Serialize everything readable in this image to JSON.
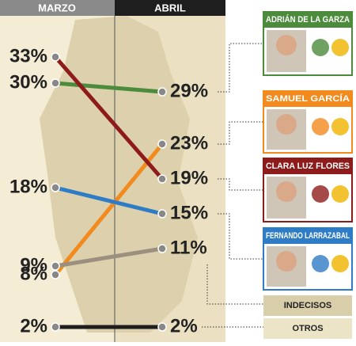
{
  "chart_data": {
    "type": "slope",
    "categories": [
      "MARZO",
      "ABRIL"
    ],
    "series": [
      {
        "name": "ADRIÁN DE LA GARZA",
        "color": "#4b8b3b",
        "values": [
          30,
          29
        ],
        "value_labels": [
          "30%",
          "29%"
        ]
      },
      {
        "name": "SAMUEL GARCÍA",
        "color": "#f28a1e",
        "values": [
          8,
          23
        ],
        "value_labels": [
          "8%",
          "23%"
        ]
      },
      {
        "name": "CLARA LUZ FLORES",
        "color": "#8e1b1b",
        "values": [
          33,
          19
        ],
        "value_labels": [
          "33%",
          "19%"
        ]
      },
      {
        "name": "FERNANDO LARRAZABAL",
        "color": "#2f7cc6",
        "values": [
          18,
          15
        ],
        "value_labels": [
          "18%",
          "15%"
        ]
      },
      {
        "name": "INDECISOS",
        "color": "#9b9080",
        "values": [
          9,
          11
        ],
        "value_labels": [
          "9%",
          "11%"
        ]
      },
      {
        "name": "OTROS",
        "color": "#1e1e1e",
        "values": [
          2,
          2
        ],
        "value_labels": [
          "2%",
          "2%"
        ]
      }
    ]
  }
}
